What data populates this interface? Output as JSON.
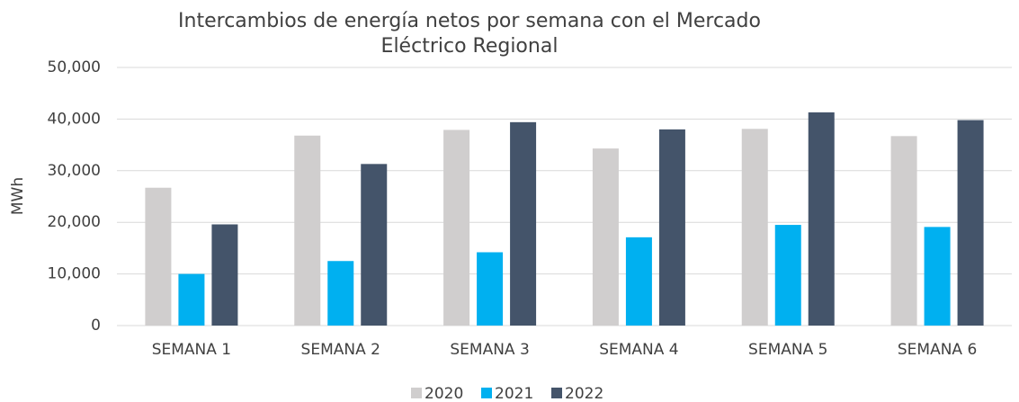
{
  "chart_data": {
    "type": "bar",
    "title": "Intercambios de energía netos por semana con el Mercado Eléctrico Regional",
    "y_label": "MWh",
    "categories": [
      "SEMANA 1",
      "SEMANA 2",
      "SEMANA 3",
      "SEMANA 4",
      "SEMANA 5",
      "SEMANA 6"
    ],
    "series": [
      {
        "name": "2020",
        "color": "#d0cece",
        "values": [
          26700,
          36800,
          37900,
          34300,
          38100,
          36700
        ]
      },
      {
        "name": "2021",
        "color": "#00b0f0",
        "values": [
          10000,
          12500,
          14200,
          17100,
          19500,
          19100
        ]
      },
      {
        "name": "2022",
        "color": "#44546a",
        "values": [
          19600,
          31300,
          39400,
          38000,
          41300,
          39800
        ]
      }
    ],
    "ylim": [
      0,
      50000
    ],
    "yticks": [
      0,
      {
        "value": 10000,
        "label": "10,000"
      },
      {
        "value": 20000,
        "label": "20,000"
      },
      {
        "value": 30000,
        "label": "30,000"
      },
      {
        "value": 40000,
        "label": "40,000"
      },
      {
        "value": 50000,
        "label": "50,000"
      }
    ],
    "grid": true,
    "legend": "bottom"
  }
}
